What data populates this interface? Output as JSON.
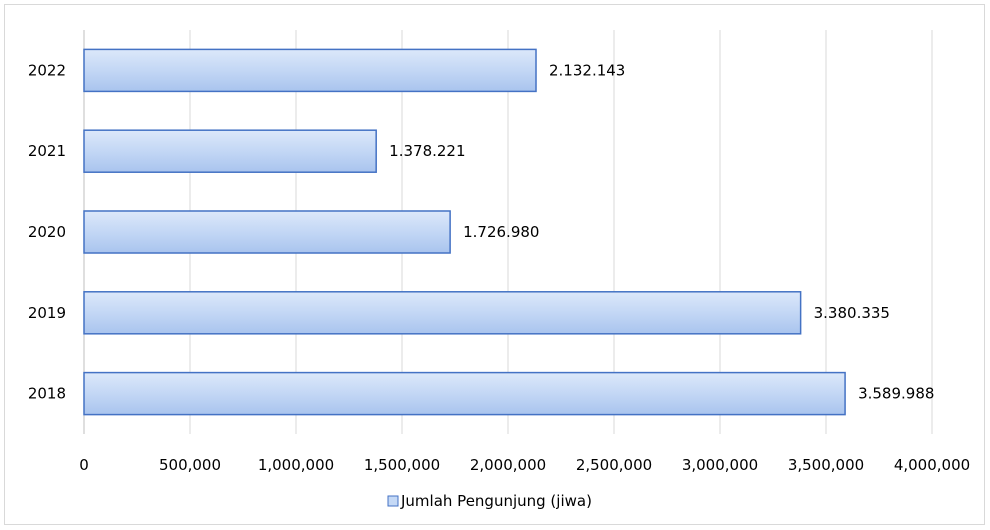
{
  "chart_data": {
    "type": "bar",
    "orientation": "horizontal",
    "categories": [
      "2022",
      "2021",
      "2020",
      "2019",
      "2018"
    ],
    "series": [
      {
        "name": "Jumlah Pengunjung (jiwa)",
        "values": [
          2132143,
          1378221,
          1726980,
          3380335,
          3589988
        ],
        "data_labels": [
          "2.132.143",
          "1.378.221",
          "1.726.980",
          "3.380.335",
          "3.589.988"
        ]
      }
    ],
    "xlim": [
      0,
      4000000
    ],
    "x_ticks": [
      0,
      500000,
      1000000,
      1500000,
      2000000,
      2500000,
      3000000,
      3500000,
      4000000
    ],
    "x_tick_labels": [
      "0",
      "500,000",
      "1,000,000",
      "1,500,000",
      "2,000,000",
      "2,500,000",
      "3,000,000",
      "3,500,000",
      "4,000,000"
    ],
    "grid": "vertical",
    "legend_position": "bottom",
    "colors": {
      "bar_fill": "#c5d9f6",
      "bar_stroke": "#4472c4",
      "grid": "#d9d9d9"
    }
  }
}
